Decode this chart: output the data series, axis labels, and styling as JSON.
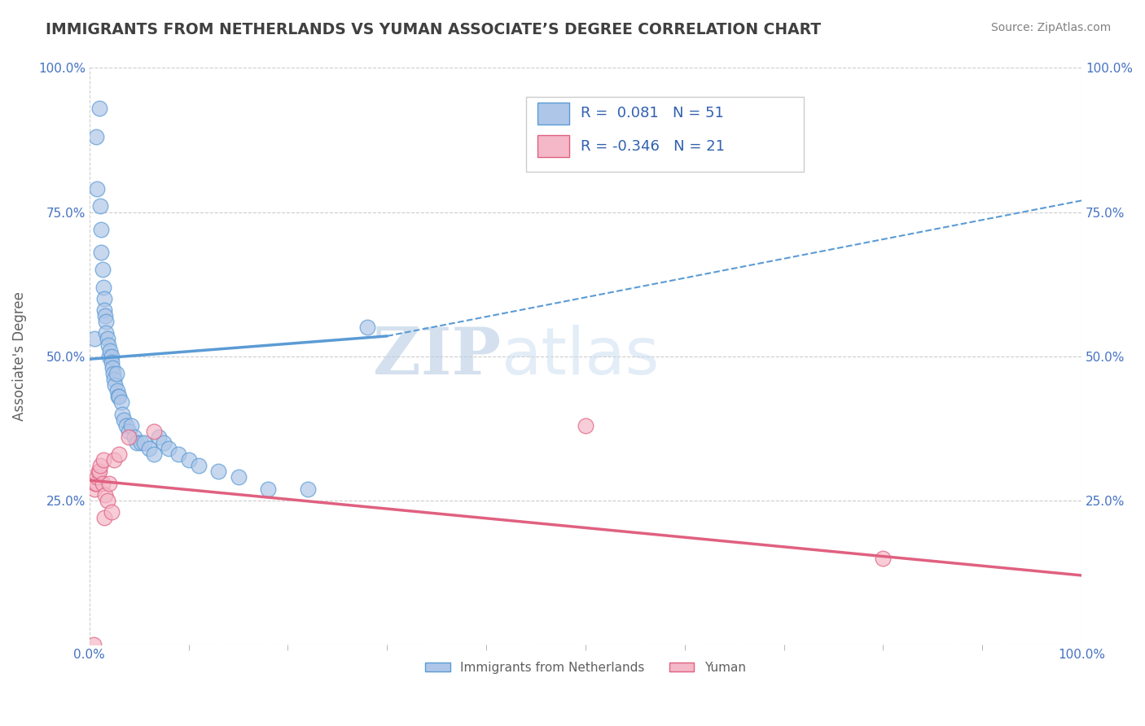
{
  "title": "IMMIGRANTS FROM NETHERLANDS VS YUMAN ASSOCIATE’S DEGREE CORRELATION CHART",
  "source_text": "Source: ZipAtlas.com",
  "ylabel": "Associate's Degree",
  "xlim": [
    0.0,
    1.0
  ],
  "ylim": [
    0.0,
    1.0
  ],
  "legend_items": [
    {
      "label": "Immigrants from Netherlands",
      "color": "#aec6e8"
    },
    {
      "label": "Yuman",
      "color": "#f4b8c8"
    }
  ],
  "r_box": [
    {
      "R": "0.081",
      "N": "51"
    },
    {
      "R": "-0.346",
      "N": "21"
    }
  ],
  "blue_scatter_x": [
    0.005,
    0.007,
    0.008,
    0.01,
    0.011,
    0.012,
    0.012,
    0.013,
    0.014,
    0.015,
    0.015,
    0.016,
    0.017,
    0.017,
    0.018,
    0.019,
    0.02,
    0.021,
    0.022,
    0.022,
    0.023,
    0.024,
    0.025,
    0.026,
    0.027,
    0.028,
    0.029,
    0.03,
    0.032,
    0.033,
    0.035,
    0.037,
    0.04,
    0.042,
    0.045,
    0.048,
    0.052,
    0.055,
    0.06,
    0.065,
    0.07,
    0.075,
    0.08,
    0.09,
    0.1,
    0.11,
    0.13,
    0.15,
    0.18,
    0.22,
    0.28
  ],
  "blue_scatter_y": [
    0.53,
    0.88,
    0.79,
    0.93,
    0.76,
    0.72,
    0.68,
    0.65,
    0.62,
    0.6,
    0.58,
    0.57,
    0.56,
    0.54,
    0.53,
    0.52,
    0.5,
    0.51,
    0.5,
    0.49,
    0.48,
    0.47,
    0.46,
    0.45,
    0.47,
    0.44,
    0.43,
    0.43,
    0.42,
    0.4,
    0.39,
    0.38,
    0.37,
    0.38,
    0.36,
    0.35,
    0.35,
    0.35,
    0.34,
    0.33,
    0.36,
    0.35,
    0.34,
    0.33,
    0.32,
    0.31,
    0.3,
    0.29,
    0.27,
    0.27,
    0.55
  ],
  "pink_scatter_x": [
    0.004,
    0.005,
    0.006,
    0.007,
    0.008,
    0.009,
    0.01,
    0.011,
    0.013,
    0.014,
    0.015,
    0.016,
    0.018,
    0.02,
    0.022,
    0.025,
    0.03,
    0.04,
    0.065,
    0.5,
    0.8
  ],
  "pink_scatter_y": [
    0.0,
    0.27,
    0.28,
    0.28,
    0.29,
    0.3,
    0.3,
    0.31,
    0.28,
    0.32,
    0.22,
    0.26,
    0.25,
    0.28,
    0.23,
    0.32,
    0.33,
    0.36,
    0.37,
    0.38,
    0.15
  ],
  "blue_solid_line_x": [
    0.0,
    0.3
  ],
  "blue_solid_line_y": [
    0.495,
    0.535
  ],
  "blue_dash_line_x": [
    0.3,
    1.0
  ],
  "blue_dash_line_y": [
    0.535,
    0.77
  ],
  "pink_line_x": [
    0.0,
    1.0
  ],
  "pink_line_y": [
    0.285,
    0.12
  ],
  "watermark_zip": "ZIP",
  "watermark_atlas": "atlas",
  "background_color": "#ffffff",
  "grid_color": "#cccccc",
  "blue_color": "#5b9bd5",
  "blue_fill": "#aec6e8",
  "pink_color": "#e06080",
  "pink_fill": "#f4b8c8",
  "title_color": "#404040",
  "axis_label_color": "#606060",
  "tick_color": "#4472c4",
  "source_color": "#808080",
  "rbox_color": "#3060b0"
}
